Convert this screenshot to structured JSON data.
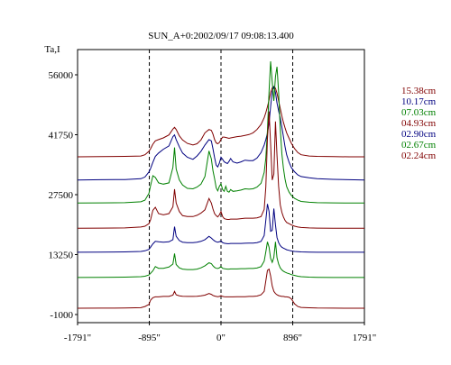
{
  "chart_data": {
    "type": "line",
    "title": "SUN_A+0:2002/09/17 09:08:13.400",
    "ylabel": "Ta,I",
    "xlabel": "",
    "xlim": [
      -1791,
      1791
    ],
    "ylim": [
      -1000,
      62000
    ],
    "grid": false,
    "legend_position": "right",
    "xticks": [
      {
        "value": -1791,
        "label": "-1791\""
      },
      {
        "value": -895,
        "label": "-895\""
      },
      {
        "value": 0,
        "label": "0\""
      },
      {
        "value": 896,
        "label": "896\""
      },
      {
        "value": 1791,
        "label": "1791\""
      }
    ],
    "yticks": [
      {
        "value": 56000,
        "label": "56000"
      },
      {
        "value": 41750,
        "label": "41750"
      },
      {
        "value": 27500,
        "label": "27500"
      },
      {
        "value": 13250,
        "label": "13250"
      },
      {
        "value": -1000,
        "label": "-1000"
      }
    ],
    "vlines": [
      -895,
      0,
      896
    ],
    "x": [
      -1791,
      -1500,
      -1200,
      -1000,
      -950,
      -900,
      -880,
      -850,
      -820,
      -780,
      -720,
      -650,
      -600,
      -580,
      -560,
      -520,
      -480,
      -420,
      -350,
      -300,
      -250,
      -200,
      -150,
      -120,
      -100,
      -80,
      -60,
      -40,
      -20,
      0,
      20,
      40,
      60,
      80,
      100,
      120,
      150,
      200,
      250,
      300,
      350,
      400,
      450,
      500,
      540,
      560,
      580,
      600,
      620,
      640,
      660,
      680,
      700,
      720,
      740,
      760,
      780,
      800,
      820,
      850,
      880,
      920,
      960,
      1000,
      1100,
      1200,
      1400,
      1600,
      1791
    ],
    "series": [
      {
        "name": "15.38cm",
        "color": "#800000",
        "values": [
          36500,
          36550,
          36600,
          36700,
          37000,
          37800,
          38400,
          39500,
          40300,
          40600,
          41000,
          41700,
          43100,
          43500,
          43000,
          41500,
          40500,
          39700,
          39300,
          39600,
          40500,
          42200,
          43000,
          42800,
          41900,
          40600,
          39800,
          39600,
          39900,
          40600,
          41200,
          41200,
          41100,
          41000,
          40900,
          41000,
          41100,
          41300,
          41400,
          41600,
          41800,
          42200,
          43000,
          44200,
          45800,
          47000,
          48400,
          50000,
          51800,
          52900,
          53200,
          52800,
          51600,
          49800,
          48000,
          46200,
          44700,
          43400,
          42200,
          40900,
          39700,
          38400,
          37500,
          37000,
          36700,
          36600,
          36550,
          36500,
          36500
        ]
      },
      {
        "name": "10.17cm",
        "color": "#000080",
        "values": [
          31000,
          31050,
          31100,
          31300,
          31700,
          32900,
          33700,
          35200,
          36600,
          37400,
          38300,
          39100,
          41300,
          41700,
          40600,
          38900,
          37400,
          36400,
          35900,
          36700,
          37800,
          39300,
          40600,
          40300,
          38400,
          36300,
          34500,
          34100,
          35000,
          36400,
          35900,
          35300,
          35100,
          34900,
          35400,
          36100,
          35300,
          35000,
          35300,
          35700,
          35600,
          35600,
          36200,
          37500,
          39300,
          40600,
          42100,
          44600,
          48400,
          52000,
          53100,
          51800,
          49300,
          47400,
          45800,
          43600,
          41300,
          38900,
          37000,
          35200,
          33900,
          32900,
          32200,
          31800,
          31500,
          31300,
          31150,
          31050,
          31000
        ]
      },
      {
        "name": "07.03cm",
        "color": "#008000",
        "values": [
          25500,
          25550,
          25600,
          25800,
          26200,
          27800,
          29600,
          32000,
          31600,
          30300,
          30000,
          30300,
          34000,
          38700,
          33600,
          31000,
          29800,
          29000,
          28900,
          29300,
          30000,
          31800,
          37900,
          36000,
          33200,
          31300,
          29100,
          28400,
          29500,
          30100,
          28700,
          28300,
          29500,
          28300,
          28100,
          28700,
          28300,
          28400,
          28600,
          28900,
          28800,
          28900,
          29300,
          30200,
          32800,
          36200,
          42800,
          52100,
          59200,
          54300,
          49800,
          55600,
          57900,
          51800,
          43300,
          37200,
          33800,
          31200,
          29400,
          28100,
          27300,
          26600,
          26200,
          25900,
          25700,
          25600,
          25550,
          25500,
          25500
        ]
      },
      {
        "name": "04.93cm",
        "color": "#800000",
        "values": [
          19500,
          19550,
          19600,
          19800,
          20000,
          20600,
          21500,
          23800,
          24500,
          23000,
          22700,
          23000,
          24600,
          28800,
          25500,
          23500,
          22500,
          22300,
          22300,
          22600,
          23100,
          23900,
          26600,
          25500,
          24100,
          23000,
          22500,
          22200,
          22700,
          23500,
          22300,
          21800,
          21700,
          21600,
          21600,
          21700,
          21700,
          21700,
          21800,
          21900,
          21900,
          21900,
          22000,
          22300,
          24000,
          29300,
          40800,
          47300,
          39600,
          31000,
          32400,
          44900,
          36800,
          29500,
          25100,
          23300,
          22200,
          21400,
          20900,
          20600,
          20300,
          20000,
          19800,
          19700,
          19600,
          19550,
          19500,
          19500,
          19500
        ]
      },
      {
        "name": "02.90cm",
        "color": "#000080",
        "values": [
          13800,
          13850,
          13900,
          14000,
          14150,
          14500,
          15000,
          15800,
          16400,
          16300,
          16200,
          16300,
          16800,
          19900,
          17600,
          16600,
          16200,
          16100,
          16100,
          16200,
          16400,
          16800,
          17600,
          17200,
          16800,
          16500,
          16300,
          16200,
          16300,
          16500,
          16100,
          15950,
          15900,
          15850,
          15850,
          15900,
          15900,
          15900,
          15900,
          15950,
          16000,
          16000,
          16100,
          16400,
          17800,
          21400,
          25300,
          23500,
          18800,
          19000,
          24200,
          20300,
          17300,
          16100,
          15400,
          15000,
          14800,
          14600,
          14400,
          14250,
          14100,
          14000,
          13950,
          13900,
          13850,
          13800,
          13800,
          13800,
          13800
        ]
      },
      {
        "name": "02.67cm",
        "color": "#008000",
        "values": [
          7800,
          7850,
          7900,
          8000,
          8100,
          8400,
          8800,
          9400,
          10400,
          10000,
          10000,
          10300,
          11000,
          13500,
          10900,
          10100,
          9800,
          9700,
          9700,
          9800,
          10100,
          10600,
          11300,
          11100,
          10600,
          10200,
          10000,
          9950,
          10100,
          10400,
          10000,
          9900,
          9850,
          9800,
          9800,
          9850,
          9850,
          9850,
          9900,
          9900,
          9950,
          9950,
          10050,
          10400,
          11700,
          13900,
          16300,
          15000,
          12400,
          11400,
          12600,
          16300,
          12500,
          11000,
          10100,
          9600,
          9300,
          9100,
          8900,
          8700,
          8500,
          8300,
          8100,
          8000,
          7900,
          7850,
          7800,
          7800,
          7800
        ]
      },
      {
        "name": "02.24cm",
        "color": "#800000",
        "values": [
          500,
          520,
          550,
          620,
          900,
          1400,
          2400,
          3000,
          3200,
          3200,
          3300,
          3300,
          3600,
          4500,
          3700,
          3450,
          3350,
          3300,
          3300,
          3350,
          3450,
          3600,
          4000,
          3800,
          3550,
          3400,
          3300,
          3250,
          3300,
          3500,
          3300,
          3250,
          3200,
          3200,
          3200,
          3200,
          3200,
          3250,
          3250,
          3250,
          3300,
          3300,
          3400,
          3700,
          4500,
          7000,
          9500,
          9800,
          8200,
          5800,
          4500,
          4000,
          3700,
          3500,
          3400,
          3300,
          3300,
          3200,
          3200,
          3100,
          2700,
          1500,
          900,
          700,
          600,
          550,
          520,
          500,
          500
        ]
      }
    ]
  }
}
